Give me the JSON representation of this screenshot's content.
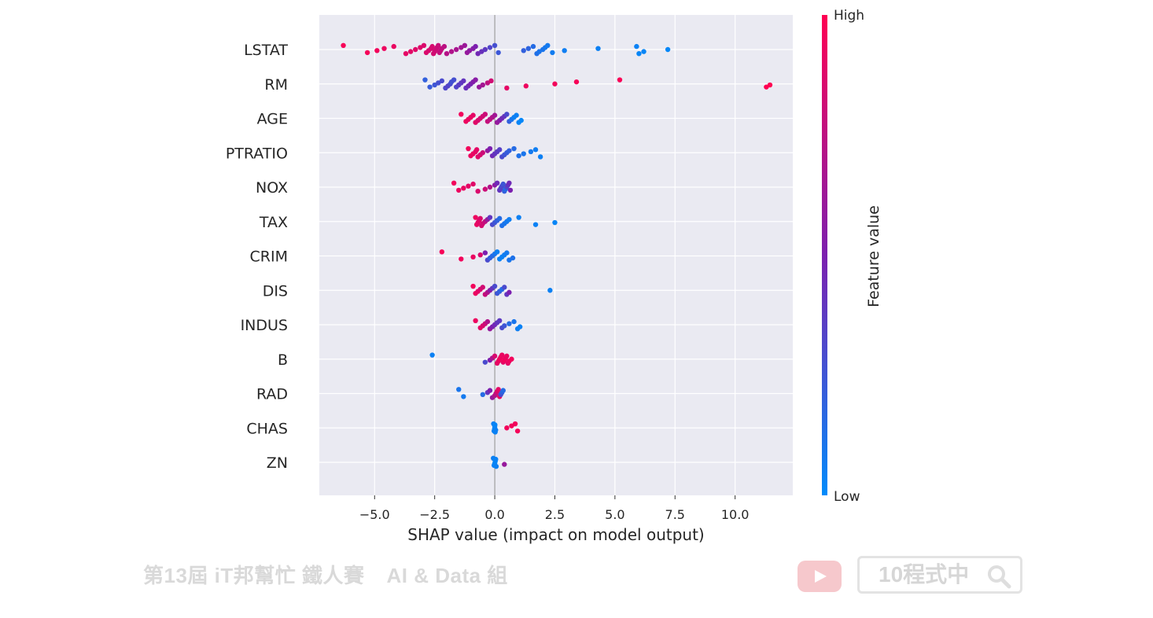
{
  "chart_data": {
    "type": "scatter",
    "subtype": "shap-beeswarm",
    "xlabel": "SHAP value (impact on model output)",
    "xlim": [
      -7.3,
      12.4
    ],
    "xticks": [
      -5.0,
      -2.5,
      0.0,
      2.5,
      5.0,
      7.5,
      10.0
    ],
    "xtick_labels": [
      "−5.0",
      "−2.5",
      "0.0",
      "2.5",
      "5.0",
      "7.5",
      "10.0"
    ],
    "grid": true,
    "colors": {
      "low": "#008bfb",
      "high": "#ff0052",
      "mid": "#7c1faf",
      "plot_bg": "#eaeaf2",
      "grid": "#ffffff"
    },
    "colorbar": {
      "label": "Feature value",
      "high_label": "High",
      "low_label": "Low",
      "placement": "right"
    },
    "features": [
      {
        "name": "LSTAT",
        "points": [
          [
            -6.3,
            0.97
          ],
          [
            -5.3,
            0.96
          ],
          [
            -4.9,
            0.95
          ],
          [
            -4.6,
            0.93
          ],
          [
            -4.2,
            0.92
          ],
          [
            -3.7,
            0.9
          ],
          [
            -3.5,
            0.89
          ],
          [
            -3.3,
            0.88
          ],
          [
            -3.1,
            0.87
          ],
          [
            -2.95,
            0.86
          ],
          [
            -2.85,
            0.86
          ],
          [
            -2.75,
            0.85
          ],
          [
            -2.65,
            0.84
          ],
          [
            -2.6,
            0.84
          ],
          [
            -2.55,
            0.83
          ],
          [
            -2.5,
            0.82
          ],
          [
            -2.45,
            0.81
          ],
          [
            -2.4,
            0.8
          ],
          [
            -2.35,
            0.79
          ],
          [
            -2.3,
            0.78
          ],
          [
            -2.25,
            0.77
          ],
          [
            -2.2,
            0.76
          ],
          [
            -2.1,
            0.74
          ],
          [
            -2.0,
            0.72
          ],
          [
            -1.8,
            0.7
          ],
          [
            -1.6,
            0.67
          ],
          [
            -1.4,
            0.64
          ],
          [
            -1.25,
            0.62
          ],
          [
            -1.15,
            0.6
          ],
          [
            -1.05,
            0.57
          ],
          [
            -0.9,
            0.54
          ],
          [
            -0.8,
            0.5
          ],
          [
            -0.7,
            0.46
          ],
          [
            -0.55,
            0.42
          ],
          [
            -0.4,
            0.38
          ],
          [
            -0.2,
            0.33
          ],
          [
            0.0,
            0.28
          ],
          [
            0.15,
            0.24
          ],
          [
            1.2,
            0.2
          ],
          [
            1.4,
            0.18
          ],
          [
            1.6,
            0.15
          ],
          [
            1.75,
            0.13
          ],
          [
            1.85,
            0.11
          ],
          [
            2.0,
            0.1
          ],
          [
            2.1,
            0.09
          ],
          [
            2.2,
            0.08
          ],
          [
            2.4,
            0.07
          ],
          [
            2.9,
            0.06
          ],
          [
            4.3,
            0.05
          ],
          [
            5.9,
            0.04
          ],
          [
            6.0,
            0.03
          ],
          [
            6.2,
            0.03
          ],
          [
            7.2,
            0.02
          ]
        ]
      },
      {
        "name": "RM",
        "points": [
          [
            -2.9,
            0.2
          ],
          [
            -2.7,
            0.22
          ],
          [
            -2.5,
            0.25
          ],
          [
            -2.35,
            0.28
          ],
          [
            -2.2,
            0.3
          ],
          [
            -2.05,
            0.32
          ],
          [
            -1.95,
            0.34
          ],
          [
            -1.85,
            0.3
          ],
          [
            -1.8,
            0.27
          ],
          [
            -1.7,
            0.28
          ],
          [
            -1.6,
            0.33
          ],
          [
            -1.5,
            0.36
          ],
          [
            -1.4,
            0.38
          ],
          [
            -1.3,
            0.4
          ],
          [
            -1.2,
            0.42
          ],
          [
            -1.1,
            0.45
          ],
          [
            -1.0,
            0.48
          ],
          [
            -0.9,
            0.52
          ],
          [
            -0.8,
            0.55
          ],
          [
            -0.65,
            0.6
          ],
          [
            -0.5,
            0.65
          ],
          [
            -0.3,
            0.75
          ],
          [
            -0.15,
            0.82
          ],
          [
            0.5,
            0.9
          ],
          [
            1.3,
            0.93
          ],
          [
            2.5,
            0.95
          ],
          [
            3.4,
            0.97
          ],
          [
            5.2,
            0.98
          ],
          [
            11.3,
            1.0
          ],
          [
            11.45,
            1.0
          ]
        ]
      },
      {
        "name": "AGE",
        "points": [
          [
            -1.4,
            0.95
          ],
          [
            -1.2,
            0.93
          ],
          [
            -1.1,
            0.92
          ],
          [
            -1.0,
            0.92
          ],
          [
            -0.9,
            0.9
          ],
          [
            -0.8,
            0.88
          ],
          [
            -0.7,
            0.86
          ],
          [
            -0.6,
            0.84
          ],
          [
            -0.5,
            0.82
          ],
          [
            -0.4,
            0.8
          ],
          [
            -0.3,
            0.78
          ],
          [
            -0.2,
            0.75
          ],
          [
            -0.1,
            0.7
          ],
          [
            0.0,
            0.64
          ],
          [
            0.1,
            0.6
          ],
          [
            0.2,
            0.55
          ],
          [
            0.3,
            0.45
          ],
          [
            0.4,
            0.4
          ],
          [
            0.5,
            0.3
          ],
          [
            0.6,
            0.2
          ],
          [
            0.7,
            0.1
          ],
          [
            0.8,
            0.05
          ],
          [
            0.9,
            0.05
          ],
          [
            1.0,
            0.03
          ],
          [
            1.1,
            0.02
          ]
        ]
      },
      {
        "name": "PTRATIO",
        "points": [
          [
            -1.1,
            0.95
          ],
          [
            -1.0,
            0.93
          ],
          [
            -0.9,
            0.92
          ],
          [
            -0.8,
            0.9
          ],
          [
            -0.75,
            0.9
          ],
          [
            -0.7,
            0.88
          ],
          [
            -0.6,
            0.85
          ],
          [
            -0.5,
            0.8
          ],
          [
            -0.3,
            0.6
          ],
          [
            -0.2,
            0.5
          ],
          [
            -0.1,
            0.45
          ],
          [
            0.0,
            0.4
          ],
          [
            0.1,
            0.38
          ],
          [
            0.2,
            0.35
          ],
          [
            0.3,
            0.3
          ],
          [
            0.4,
            0.25
          ],
          [
            0.5,
            0.22
          ],
          [
            0.6,
            0.2
          ],
          [
            0.8,
            0.15
          ],
          [
            1.0,
            0.12
          ],
          [
            1.2,
            0.1
          ],
          [
            1.5,
            0.08
          ],
          [
            1.7,
            0.06
          ],
          [
            1.9,
            0.05
          ]
        ]
      },
      {
        "name": "NOX",
        "points": [
          [
            -1.7,
            0.95
          ],
          [
            -1.5,
            0.93
          ],
          [
            -1.3,
            0.92
          ],
          [
            -1.1,
            0.9
          ],
          [
            -0.9,
            0.88
          ],
          [
            -0.7,
            0.86
          ],
          [
            -0.4,
            0.8
          ],
          [
            -0.2,
            0.7
          ],
          [
            0.0,
            0.55
          ],
          [
            0.1,
            0.45
          ],
          [
            0.2,
            0.4
          ],
          [
            0.25,
            0.35
          ],
          [
            0.3,
            0.3
          ],
          [
            0.35,
            0.25
          ],
          [
            0.4,
            0.2
          ],
          [
            0.45,
            0.15
          ],
          [
            0.5,
            0.3
          ],
          [
            0.55,
            0.4
          ],
          [
            0.6,
            0.45
          ],
          [
            0.65,
            0.5
          ]
        ]
      },
      {
        "name": "TAX",
        "points": [
          [
            -0.8,
            0.93
          ],
          [
            -0.75,
            0.92
          ],
          [
            -0.7,
            0.9
          ],
          [
            -0.65,
            0.88
          ],
          [
            -0.6,
            0.86
          ],
          [
            -0.55,
            0.84
          ],
          [
            -0.5,
            0.82
          ],
          [
            -0.4,
            0.75
          ],
          [
            -0.3,
            0.6
          ],
          [
            -0.2,
            0.4
          ],
          [
            -0.1,
            0.3
          ],
          [
            0.0,
            0.25
          ],
          [
            0.1,
            0.2
          ],
          [
            0.2,
            0.15
          ],
          [
            0.3,
            0.12
          ],
          [
            0.4,
            0.1
          ],
          [
            0.5,
            0.08
          ],
          [
            0.6,
            0.06
          ],
          [
            1.0,
            0.05
          ],
          [
            1.7,
            0.04
          ],
          [
            2.5,
            0.03
          ]
        ]
      },
      {
        "name": "CRIM",
        "points": [
          [
            -2.2,
            0.97
          ],
          [
            -1.4,
            0.95
          ],
          [
            -0.9,
            0.92
          ],
          [
            -0.6,
            0.85
          ],
          [
            -0.4,
            0.5
          ],
          [
            -0.3,
            0.3
          ],
          [
            -0.2,
            0.2
          ],
          [
            -0.1,
            0.15
          ],
          [
            0.0,
            0.1
          ],
          [
            0.1,
            0.05
          ],
          [
            0.2,
            0.04
          ],
          [
            0.3,
            0.05
          ],
          [
            0.4,
            0.06
          ],
          [
            0.5,
            0.08
          ],
          [
            0.6,
            0.1
          ],
          [
            0.75,
            0.12
          ]
        ]
      },
      {
        "name": "DIS",
        "points": [
          [
            -0.9,
            0.95
          ],
          [
            -0.8,
            0.93
          ],
          [
            -0.7,
            0.9
          ],
          [
            -0.6,
            0.85
          ],
          [
            -0.5,
            0.82
          ],
          [
            -0.4,
            0.78
          ],
          [
            -0.3,
            0.7
          ],
          [
            -0.2,
            0.55
          ],
          [
            -0.1,
            0.4
          ],
          [
            0.0,
            0.3
          ],
          [
            0.1,
            0.25
          ],
          [
            0.2,
            0.2
          ],
          [
            0.3,
            0.15
          ],
          [
            0.4,
            0.3
          ],
          [
            0.5,
            0.4
          ],
          [
            0.6,
            0.5
          ],
          [
            2.3,
            0.05
          ]
        ]
      },
      {
        "name": "INDUS",
        "points": [
          [
            -0.8,
            0.93
          ],
          [
            -0.6,
            0.9
          ],
          [
            -0.5,
            0.85
          ],
          [
            -0.4,
            0.8
          ],
          [
            -0.3,
            0.7
          ],
          [
            -0.2,
            0.6
          ],
          [
            -0.1,
            0.5
          ],
          [
            0.0,
            0.45
          ],
          [
            0.1,
            0.4
          ],
          [
            0.2,
            0.38
          ],
          [
            0.3,
            0.3
          ],
          [
            0.4,
            0.25
          ],
          [
            0.6,
            0.15
          ],
          [
            0.8,
            0.1
          ],
          [
            0.95,
            0.06
          ],
          [
            1.05,
            0.04
          ]
        ]
      },
      {
        "name": "B",
        "points": [
          [
            -2.6,
            0.05
          ],
          [
            -0.4,
            0.3
          ],
          [
            -0.2,
            0.5
          ],
          [
            -0.1,
            0.7
          ],
          [
            0.0,
            0.85
          ],
          [
            0.1,
            0.9
          ],
          [
            0.15,
            0.92
          ],
          [
            0.2,
            0.95
          ],
          [
            0.25,
            0.93
          ],
          [
            0.3,
            0.92
          ],
          [
            0.35,
            0.9
          ],
          [
            0.4,
            0.95
          ],
          [
            0.45,
            0.93
          ],
          [
            0.5,
            0.92
          ],
          [
            0.55,
            0.9
          ],
          [
            0.6,
            0.93
          ],
          [
            0.7,
            0.95
          ]
        ]
      },
      {
        "name": "RAD",
        "points": [
          [
            -1.5,
            0.1
          ],
          [
            -1.3,
            0.08
          ],
          [
            -0.5,
            0.15
          ],
          [
            -0.3,
            0.4
          ],
          [
            -0.2,
            0.5
          ],
          [
            -0.1,
            0.6
          ],
          [
            0.0,
            0.7
          ],
          [
            0.05,
            0.75
          ],
          [
            0.1,
            0.85
          ],
          [
            0.15,
            0.9
          ],
          [
            0.2,
            0.92
          ],
          [
            0.25,
            0.3
          ],
          [
            0.3,
            0.2
          ],
          [
            0.35,
            0.15
          ]
        ]
      },
      {
        "name": "CHAS",
        "points": [
          [
            -0.05,
            0.05
          ],
          [
            -0.03,
            0.04
          ],
          [
            -0.01,
            0.03
          ],
          [
            0.0,
            0.02
          ],
          [
            0.01,
            0.03
          ],
          [
            0.02,
            0.04
          ],
          [
            0.04,
            0.05
          ],
          [
            0.5,
            0.95
          ],
          [
            0.7,
            0.95
          ],
          [
            0.85,
            0.95
          ],
          [
            0.95,
            0.96
          ]
        ]
      },
      {
        "name": "ZN",
        "points": [
          [
            -0.06,
            0.05
          ],
          [
            -0.03,
            0.04
          ],
          [
            0.0,
            0.03
          ],
          [
            0.02,
            0.03
          ],
          [
            0.04,
            0.04
          ],
          [
            0.06,
            0.05
          ],
          [
            0.4,
            0.6
          ]
        ]
      }
    ]
  },
  "watermark": {
    "left_text": "第13屆 iT邦幫忙 鐵人賽",
    "left_group": "AI & Data 組",
    "search_label": "10程式中"
  }
}
